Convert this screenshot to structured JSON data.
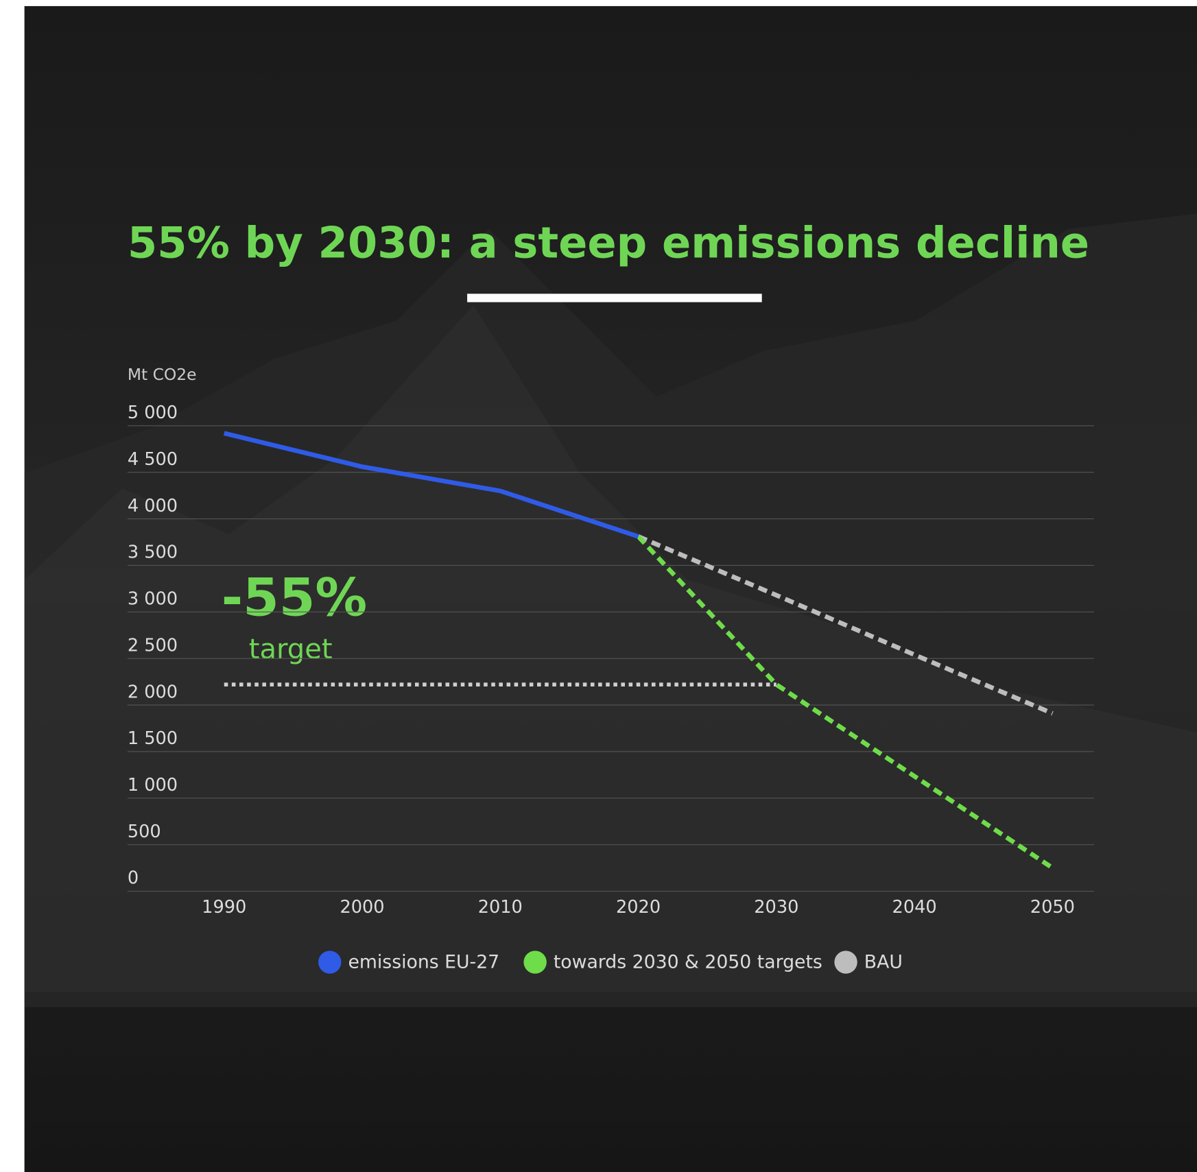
{
  "chart_data": {
    "type": "line",
    "title": "55% by 2030: a steep emissions decline",
    "y_axis_label": "Mt CO2e",
    "annotations": [
      "-55%",
      "target"
    ],
    "x": [
      1990,
      2000,
      2010,
      2020,
      2030,
      2040,
      2050
    ],
    "xlim": [
      1983,
      2053
    ],
    "xticks": [
      1990,
      2000,
      2010,
      2020,
      2030,
      2040,
      2050
    ],
    "ylim": [
      0,
      5000
    ],
    "yticks": [
      0,
      500,
      {
        "value": 1000,
        "label": "1 000"
      },
      {
        "value": 1500,
        "label": "1 500"
      },
      {
        "value": 2000,
        "label": "2 000"
      },
      {
        "value": 2500,
        "label": "2 500"
      },
      {
        "value": 3000,
        "label": "3 000"
      },
      {
        "value": 3500,
        "label": "3 500"
      },
      {
        "value": 4000,
        "label": "4 000"
      },
      {
        "value": 4500,
        "label": "4 500"
      },
      {
        "value": 5000,
        "label": "5 000"
      }
    ],
    "grid": true,
    "series": [
      {
        "name": "emissions EU-27",
        "color": "#2f5be6",
        "dashed": false,
        "values": [
          4920,
          4560,
          4300,
          3810,
          null,
          null,
          null
        ]
      },
      {
        "name": "towards 2030 & 2050 targets",
        "color": "#6fdc4a",
        "dashed": true,
        "values": [
          null,
          null,
          null,
          3810,
          2220,
          1235,
          250
        ]
      },
      {
        "name": "BAU",
        "color": "#bdbdbd",
        "dashed": true,
        "values": [
          null,
          null,
          null,
          3810,
          3180,
          2540,
          1910
        ]
      }
    ]
  }
}
